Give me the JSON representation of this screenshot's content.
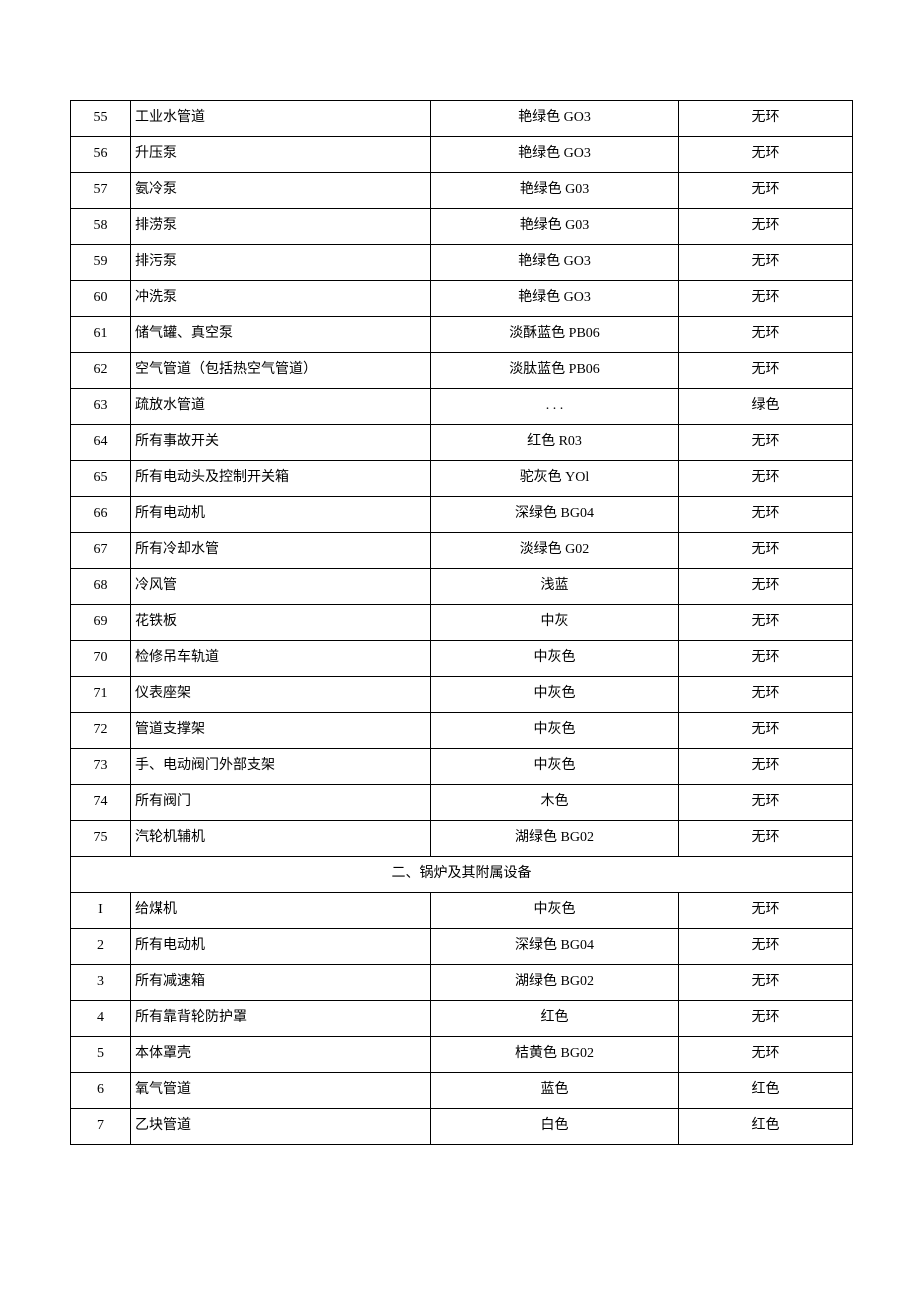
{
  "section1_rows": [
    {
      "num": "55",
      "name": "工业水管道",
      "color": "艳绿色 GO3",
      "ring": "无环"
    },
    {
      "num": "56",
      "name": "升压泵",
      "color": "艳绿色 GO3",
      "ring": "无环"
    },
    {
      "num": "57",
      "name": "氨冷泵",
      "color": "艳绿色 G03",
      "ring": "无环"
    },
    {
      "num": "58",
      "name": "排涝泵",
      "color": "艳绿色 G03",
      "ring": "无环"
    },
    {
      "num": "59",
      "name": "排污泵",
      "color": "艳绿色 GO3",
      "ring": "无环"
    },
    {
      "num": "60",
      "name": "冲洗泵",
      "color": "艳绿色 GO3",
      "ring": "无环"
    },
    {
      "num": "61",
      "name": "储气罐、真空泵",
      "color": "淡酥蓝色 PB06",
      "ring": "无环"
    },
    {
      "num": "62",
      "name": "空气管道（包括热空气管道）",
      "color": "淡肽蓝色 PB06",
      "ring": "无环"
    },
    {
      "num": "63",
      "name": "疏放水管道",
      "color": ". . .",
      "ring": "绿色"
    },
    {
      "num": "64",
      "name": "所有事故开关",
      "color": "红色 R03",
      "ring": "无环"
    },
    {
      "num": "65",
      "name": "所有电动头及控制开关箱",
      "color": "驼灰色 YOl",
      "ring": "无环"
    },
    {
      "num": "66",
      "name": "所有电动机",
      "color": "深绿色 BG04",
      "ring": "无环"
    },
    {
      "num": "67",
      "name": "所有冷却水管",
      "color": "淡绿色 G02",
      "ring": "无环"
    },
    {
      "num": "68",
      "name": "冷风管",
      "color": "浅蓝",
      "ring": "无环"
    },
    {
      "num": "69",
      "name": "花铁板",
      "color": "中灰",
      "ring": "无环"
    },
    {
      "num": "70",
      "name": "检修吊车轨道",
      "color": "中灰色",
      "ring": "无环"
    },
    {
      "num": "71",
      "name": "仪表座架",
      "color": "中灰色",
      "ring": "无环"
    },
    {
      "num": "72",
      "name": "管道支撑架",
      "color": "中灰色",
      "ring": "无环"
    },
    {
      "num": "73",
      "name": "手、电动阀门外部支架",
      "color": "中灰色",
      "ring": "无环"
    },
    {
      "num": "74",
      "name": "所有阀门",
      "color": "木色",
      "ring": "无环"
    },
    {
      "num": "75",
      "name": "汽轮机辅机",
      "color": "湖绿色 BG02",
      "ring": "无环"
    }
  ],
  "section2_title": "二、锅炉及其附属设备",
  "section2_rows": [
    {
      "num": "I",
      "name": "给煤机",
      "color": "中灰色",
      "ring": "无环"
    },
    {
      "num": "2",
      "name": "所有电动机",
      "color": "深绿色 BG04",
      "ring": "无环"
    },
    {
      "num": "3",
      "name": "所有减速箱",
      "color": "湖绿色 BG02",
      "ring": "无环"
    },
    {
      "num": "4",
      "name": "所有靠背轮防护罩",
      "color": "红色",
      "ring": "无环"
    },
    {
      "num": "5",
      "name": "本体罩壳",
      "color": "桔黄色 BG02",
      "ring": "无环"
    },
    {
      "num": "6",
      "name": "氧气管道",
      "color": "蓝色",
      "ring": "红色"
    },
    {
      "num": "7",
      "name": "乙块管道",
      "color": "白色",
      "ring": "红色"
    }
  ]
}
